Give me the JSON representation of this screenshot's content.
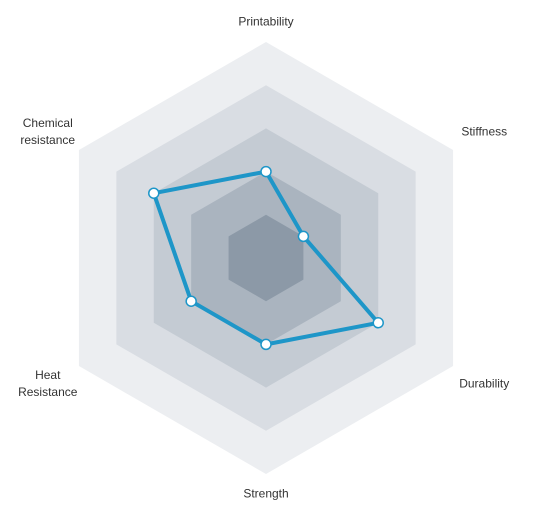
{
  "chart_data": {
    "type": "radar",
    "categories": [
      "Printability",
      "Stiffness",
      "Durability",
      "Strength",
      "Heat Resistance",
      "Chemical resistance"
    ],
    "values": [
      2,
      1,
      3,
      2,
      2,
      3
    ],
    "color": "#1e96c8",
    "rlim": [
      0,
      5
    ],
    "rticks": [
      1,
      2,
      3,
      4,
      5
    ],
    "grid": true
  }
}
